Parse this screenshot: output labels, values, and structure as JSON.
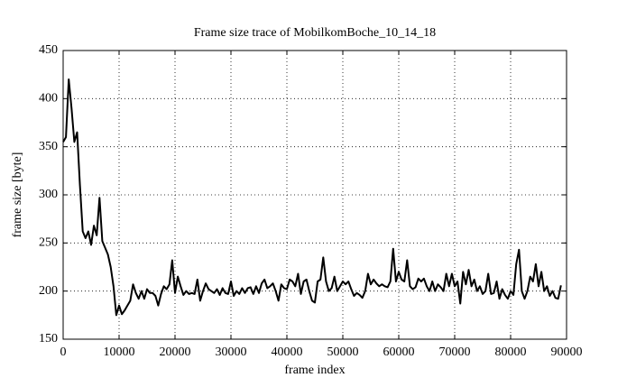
{
  "chart_data": {
    "type": "line",
    "title": "Frame size trace of MobilkomBoche_10_14_18",
    "x_label": "frame index",
    "y_label": "frame size [byte]",
    "xlim": [
      0,
      90000
    ],
    "ylim": [
      150,
      450
    ],
    "xticks": [
      0,
      10000,
      20000,
      30000,
      40000,
      50000,
      60000,
      70000,
      80000,
      90000
    ],
    "yticks": [
      150,
      200,
      250,
      300,
      350,
      400,
      450
    ],
    "grid": true,
    "x": [
      0,
      500,
      1000,
      1500,
      2000,
      2500,
      3000,
      3500,
      4000,
      4500,
      5000,
      5500,
      6000,
      6500,
      7000,
      7500,
      8000,
      8500,
      9000,
      9500,
      10000,
      10500,
      11000,
      11500,
      12000,
      12500,
      13000,
      13500,
      14000,
      14500,
      15000,
      15500,
      16000,
      16500,
      17000,
      17500,
      18000,
      18500,
      19000,
      19500,
      20000,
      20500,
      21000,
      21500,
      22000,
      22500,
      23000,
      23500,
      24000,
      24500,
      25000,
      25500,
      26000,
      26500,
      27000,
      27500,
      28000,
      28500,
      29000,
      29500,
      30000,
      30500,
      31000,
      31500,
      32000,
      32500,
      33000,
      33500,
      34000,
      34500,
      35000,
      35500,
      36000,
      36500,
      37000,
      37500,
      38000,
      38500,
      39000,
      39500,
      40000,
      40500,
      41000,
      41500,
      42000,
      42500,
      43000,
      43500,
      44000,
      44500,
      45000,
      45500,
      46000,
      46500,
      47000,
      47500,
      48000,
      48500,
      49000,
      49500,
      50000,
      50500,
      51000,
      51500,
      52000,
      52500,
      53000,
      53500,
      54000,
      54500,
      55000,
      55500,
      56000,
      56500,
      57000,
      57500,
      58000,
      58500,
      59000,
      59500,
      60000,
      60500,
      61000,
      61500,
      62000,
      62500,
      63000,
      63500,
      64000,
      64500,
      65000,
      65500,
      66000,
      66500,
      67000,
      67500,
      68000,
      68500,
      69000,
      69500,
      70000,
      70500,
      71000,
      71500,
      72000,
      72500,
      73000,
      73500,
      74000,
      74500,
      75000,
      75500,
      76000,
      76500,
      77000,
      77500,
      78000,
      78500,
      79000,
      79500,
      80000,
      80500,
      81000,
      81500,
      82000,
      82500,
      83000,
      83500,
      84000,
      84500,
      85000,
      85500,
      86000,
      86500,
      87000,
      87500,
      88000,
      88500,
      89000
    ],
    "series": [
      {
        "color": "#000000",
        "values": [
          355,
          360,
          420,
          390,
          355,
          365,
          310,
          262,
          255,
          262,
          248,
          268,
          258,
          297,
          252,
          245,
          238,
          225,
          205,
          175,
          185,
          176,
          180,
          185,
          190,
          207,
          198,
          192,
          200,
          192,
          202,
          198,
          198,
          195,
          185,
          197,
          205,
          202,
          207,
          232,
          198,
          215,
          205,
          196,
          200,
          197,
          198,
          197,
          212,
          190,
          200,
          208,
          202,
          200,
          198,
          202,
          196,
          203,
          198,
          197,
          210,
          195,
          200,
          197,
          203,
          198,
          203,
          204,
          197,
          205,
          198,
          208,
          212,
          203,
          205,
          208,
          200,
          190,
          207,
          203,
          202,
          212,
          210,
          205,
          218,
          197,
          210,
          212,
          200,
          190,
          188,
          210,
          212,
          235,
          210,
          200,
          203,
          215,
          200,
          205,
          210,
          207,
          210,
          202,
          195,
          198,
          196,
          193,
          200,
          218,
          207,
          212,
          208,
          205,
          207,
          205,
          204,
          210,
          244,
          210,
          220,
          212,
          210,
          232,
          205,
          202,
          204,
          213,
          210,
          213,
          205,
          200,
          210,
          200,
          207,
          204,
          200,
          218,
          205,
          218,
          205,
          210,
          187,
          220,
          207,
          222,
          205,
          212,
          200,
          205,
          197,
          200,
          218,
          197,
          198,
          210,
          192,
          202,
          196,
          192,
          200,
          196,
          228,
          243,
          200,
          192,
          200,
          215,
          210,
          228,
          205,
          220,
          200,
          205,
          195,
          200,
          193,
          192,
          206
        ]
      }
    ]
  }
}
